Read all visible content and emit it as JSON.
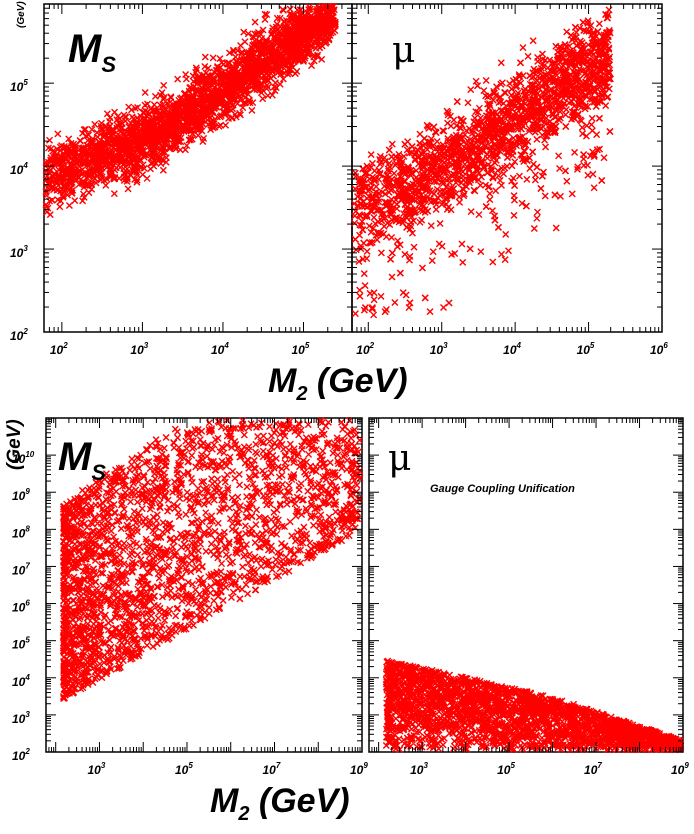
{
  "figure": {
    "top_xtitle_main": "M",
    "top_xtitle_sub": "2",
    "top_xtitle_unit": " (GeV)",
    "bottom_xtitle_main": "M",
    "bottom_xtitle_sub": "2",
    "bottom_xtitle_unit": " (GeV)",
    "top_unit": "(GeV)",
    "bottom_unit": "(GeV)",
    "annotation": "Gauge Coupling Unification",
    "label_ms_main": "M",
    "label_ms_sub": "S",
    "label_mu": "μ",
    "marker_color": "#ff0000"
  },
  "chart_data": [
    {
      "id": "top-left",
      "type": "scatter",
      "marker": "x",
      "xscale": "log",
      "yscale": "log",
      "xlim": [
        60,
        400000
      ],
      "ylim": [
        100,
        900000
      ],
      "xticks": [
        {
          "b": "10",
          "e": "2"
        },
        {
          "b": "10",
          "e": "3"
        },
        {
          "b": "10",
          "e": "4"
        },
        {
          "b": "10",
          "e": "5"
        }
      ],
      "yticks": [
        {
          "b": "10",
          "e": "2"
        },
        {
          "b": "10",
          "e": "3"
        },
        {
          "b": "10",
          "e": "4"
        },
        {
          "b": "10",
          "e": "5"
        }
      ],
      "series": [
        {
          "band_x": [
            60,
            250000
          ],
          "band_center_y": [
            [
              60,
              7000
            ],
            [
              1000,
              20000
            ],
            [
              10000,
              80000
            ],
            [
              250000,
              800000
            ]
          ],
          "band_width_decades": 0.55
        }
      ]
    },
    {
      "id": "top-right",
      "type": "scatter",
      "marker": "x",
      "xscale": "log",
      "yscale": "log",
      "xlim": [
        60,
        1000000
      ],
      "ylim": [
        100,
        900000
      ],
      "xticks": [
        {
          "b": "10",
          "e": "2"
        },
        {
          "b": "10",
          "e": "3"
        },
        {
          "b": "10",
          "e": "4"
        },
        {
          "b": "10",
          "e": "5"
        },
        {
          "b": "10",
          "e": "6"
        }
      ],
      "yticks": [],
      "series": [
        {
          "band_x": [
            60,
            200000
          ],
          "band_center_y": [
            [
              60,
              3000
            ],
            [
              1000,
              10000
            ],
            [
              10000,
              40000
            ],
            [
              100000,
              150000
            ]
          ],
          "band_width_decades": 0.9,
          "tail_down_decades": 1.4
        }
      ]
    },
    {
      "id": "bottom-left",
      "type": "scatter",
      "marker": "x",
      "xscale": "log",
      "yscale": "log",
      "xlim": [
        60,
        1000000000
      ],
      "ylim": [
        100,
        100000000000
      ],
      "xticks": [
        {
          "b": "10",
          "e": "3"
        },
        {
          "b": "10",
          "e": "5"
        },
        {
          "b": "10",
          "e": "7"
        },
        {
          "b": "10",
          "e": "9"
        }
      ],
      "yticks": [
        {
          "b": "10",
          "e": "2"
        },
        {
          "b": "10",
          "e": "3"
        },
        {
          "b": "10",
          "e": "4"
        },
        {
          "b": "10",
          "e": "5"
        },
        {
          "b": "10",
          "e": "6"
        },
        {
          "b": "10",
          "e": "7"
        },
        {
          "b": "10",
          "e": "8"
        },
        {
          "b": "10",
          "e": "9"
        },
        {
          "b": "10",
          "e": "10"
        }
      ],
      "series": [
        {
          "x_range": [
            150,
            1000000000
          ],
          "lower_y": [
            [
              150,
              2500
            ],
            [
              1000000000,
              100000000
            ]
          ],
          "upper_y": [
            [
              150,
              500000000
            ],
            [
              100000,
              100000000000
            ]
          ]
        }
      ]
    },
    {
      "id": "bottom-right",
      "type": "scatter",
      "marker": "x",
      "xscale": "log",
      "yscale": "log",
      "xlim": [
        60,
        1000000000
      ],
      "ylim": [
        100,
        100000000000
      ],
      "xticks": [
        {
          "b": "10",
          "e": "3"
        },
        {
          "b": "10",
          "e": "5"
        },
        {
          "b": "10",
          "e": "7"
        },
        {
          "b": "10",
          "e": "9"
        }
      ],
      "yticks": [],
      "series": [
        {
          "x_range": [
            150,
            1000000000
          ],
          "upper_y": [
            [
              150,
              30000
            ],
            [
              1000000,
              3000
            ],
            [
              1000000000,
              200
            ]
          ],
          "lower_y": 100
        }
      ]
    }
  ]
}
